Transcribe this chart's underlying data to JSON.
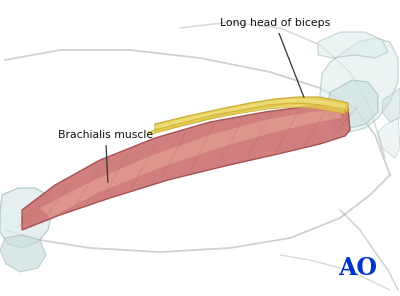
{
  "bg_color": "#ffffff",
  "label_brachialis": "Brachialis muscle",
  "label_biceps": "Long head of biceps",
  "label_ao": "AO",
  "ao_color": "#0033cc",
  "muscle_fill": "#cc7070",
  "muscle_fill_light": "#e8a898",
  "muscle_fill_dark": "#b85c5c",
  "muscle_edge": "#a04848",
  "tendon_fill": "#e8d050",
  "tendon_fill2": "#f0e080",
  "tendon_edge": "#c8a830",
  "bone_fill": "#ddeaea",
  "bone_edge": "#98b8b8",
  "bone_fill2": "#c8dcdc",
  "skin_line": "#aaaaaa",
  "annotation_color": "#111111",
  "line_color": "#888888"
}
